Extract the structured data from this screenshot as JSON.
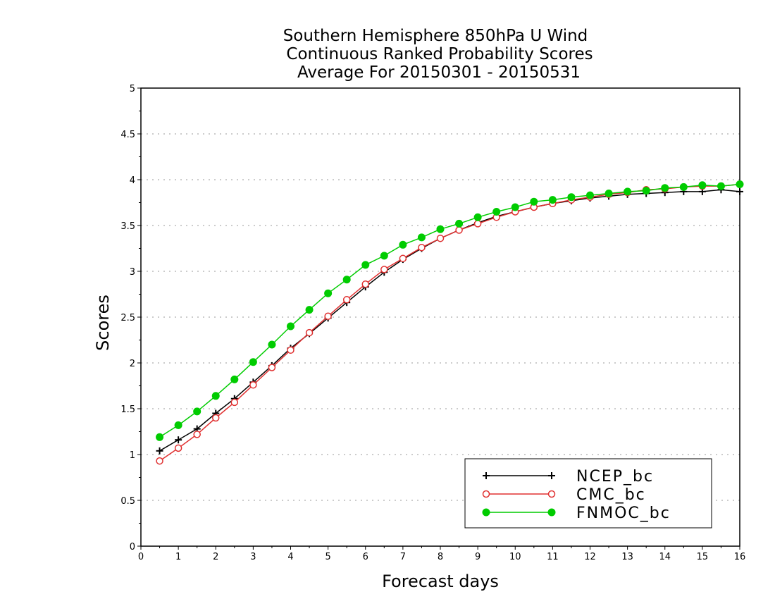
{
  "chart_data": {
    "type": "line",
    "title_lines": [
      "Southern Hemisphere 850hPa U Wind",
      "Continuous Ranked Probability Scores",
      "Average For 20150301 - 20150531"
    ],
    "xlabel": "Forecast days",
    "ylabel": "Scores",
    "xlim": [
      0,
      16
    ],
    "ylim": [
      0,
      5
    ],
    "xticks": [
      "0",
      "1",
      "2",
      "3",
      "4",
      "5",
      "6",
      "7",
      "8",
      "9",
      "10",
      "11",
      "12",
      "13",
      "14",
      "15",
      "16"
    ],
    "yticks": [
      "0",
      "0.5",
      "1",
      "1.5",
      "2",
      "2.5",
      "3",
      "3.5",
      "4",
      "4.5",
      "5"
    ],
    "grid": true,
    "legend_position": "bottom-right",
    "x": [
      0.5,
      1,
      1.5,
      2,
      2.5,
      3,
      3.5,
      4,
      4.5,
      5,
      5.5,
      6,
      6.5,
      7,
      7.5,
      8,
      8.5,
      9,
      9.5,
      10,
      10.5,
      11,
      11.5,
      12,
      12.5,
      13,
      13.5,
      14,
      14.5,
      15,
      15.5,
      16
    ],
    "series": [
      {
        "name": "NCEP_bc",
        "color": "#000000",
        "marker": "plus",
        "values": [
          1.04,
          1.16,
          1.28,
          1.45,
          1.61,
          1.79,
          1.97,
          2.16,
          2.32,
          2.49,
          2.66,
          2.83,
          2.99,
          3.13,
          3.25,
          3.36,
          3.45,
          3.53,
          3.6,
          3.65,
          3.7,
          3.74,
          3.77,
          3.8,
          3.82,
          3.84,
          3.85,
          3.86,
          3.87,
          3.87,
          3.89,
          3.87
        ]
      },
      {
        "name": "CMC_bc",
        "color": "#e03030",
        "marker": "open-circle",
        "values": [
          0.93,
          1.07,
          1.22,
          1.4,
          1.57,
          1.76,
          1.95,
          2.14,
          2.33,
          2.51,
          2.69,
          2.86,
          3.02,
          3.14,
          3.26,
          3.36,
          3.45,
          3.52,
          3.59,
          3.65,
          3.7,
          3.74,
          3.78,
          3.81,
          3.84,
          3.86,
          3.89,
          3.9,
          3.92,
          3.93,
          3.93,
          3.95
        ]
      },
      {
        "name": "FNMOC_bc",
        "color": "#00cc00",
        "marker": "filled-circle",
        "values": [
          1.19,
          1.32,
          1.47,
          1.64,
          1.82,
          2.01,
          2.2,
          2.4,
          2.58,
          2.76,
          2.91,
          3.07,
          3.17,
          3.29,
          3.37,
          3.46,
          3.52,
          3.59,
          3.65,
          3.7,
          3.76,
          3.78,
          3.81,
          3.83,
          3.85,
          3.87,
          3.88,
          3.91,
          3.92,
          3.94,
          3.93,
          3.95
        ]
      }
    ]
  }
}
